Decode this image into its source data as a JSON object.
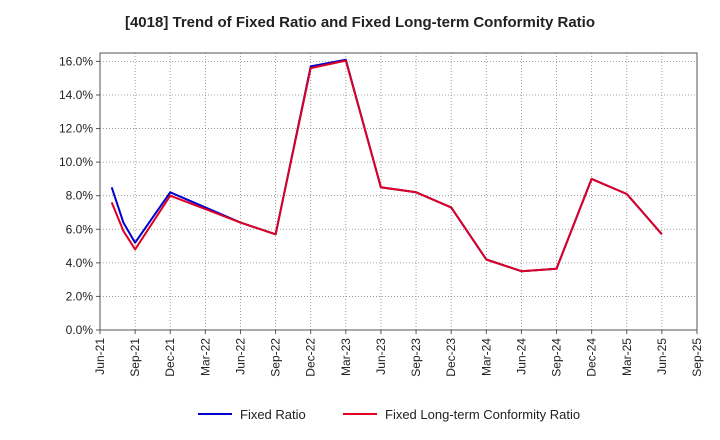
{
  "chart_data": {
    "type": "line",
    "title": "[4018]  Trend of Fixed Ratio and Fixed Long-term Conformity Ratio",
    "xlabel": "",
    "ylabel": "",
    "x_ticks": [
      "Jun-21",
      "Sep-21",
      "Dec-21",
      "Mar-22",
      "Jun-22",
      "Sep-22",
      "Dec-22",
      "Mar-23",
      "Jun-23",
      "Sep-23",
      "Dec-23",
      "Mar-24",
      "Jun-24",
      "Sep-24",
      "Dec-24",
      "Mar-25",
      "Jun-25",
      "Sep-25"
    ],
    "y_ticks": [
      "0.0%",
      "2.0%",
      "4.0%",
      "6.0%",
      "8.0%",
      "10.0%",
      "12.0%",
      "14.0%",
      "16.0%"
    ],
    "ylim": [
      0,
      16.5
    ],
    "grid": true,
    "legend_position": "bottom",
    "series": [
      {
        "name": "Fixed Ratio",
        "color": "#0000cc",
        "points": [
          {
            "x": "Jul-21",
            "y": 8.5
          },
          {
            "x": "Aug-21",
            "y": 6.4
          },
          {
            "x": "Sep-21",
            "y": 5.2
          },
          {
            "x": "Dec-21",
            "y": 8.2
          },
          {
            "x": "Mar-22",
            "y": 7.3
          },
          {
            "x": "Jun-22",
            "y": 6.4
          },
          {
            "x": "Sep-22",
            "y": 5.7
          },
          {
            "x": "Dec-22",
            "y": 15.7
          },
          {
            "x": "Mar-23",
            "y": 16.1
          },
          {
            "x": "Jun-23",
            "y": 8.5
          },
          {
            "x": "Sep-23",
            "y": 8.2
          },
          {
            "x": "Dec-23",
            "y": 7.3
          },
          {
            "x": "Mar-24",
            "y": 4.2
          },
          {
            "x": "Jun-24",
            "y": 3.5
          },
          {
            "x": "Sep-24",
            "y": 3.65
          },
          {
            "x": "Dec-24",
            "y": 9.0
          },
          {
            "x": "Mar-25",
            "y": 8.1
          },
          {
            "x": "Jun-25",
            "y": 5.7
          }
        ]
      },
      {
        "name": "Fixed Long-term Conformity Ratio",
        "color": "#dd0022",
        "points": [
          {
            "x": "Jul-21",
            "y": 7.6
          },
          {
            "x": "Aug-21",
            "y": 5.9
          },
          {
            "x": "Sep-21",
            "y": 4.8
          },
          {
            "x": "Dec-21",
            "y": 8.0
          },
          {
            "x": "Mar-22",
            "y": 7.2
          },
          {
            "x": "Jun-22",
            "y": 6.4
          },
          {
            "x": "Sep-22",
            "y": 5.7
          },
          {
            "x": "Dec-22",
            "y": 15.6
          },
          {
            "x": "Mar-23",
            "y": 16.05
          },
          {
            "x": "Jun-23",
            "y": 8.5
          },
          {
            "x": "Sep-23",
            "y": 8.2
          },
          {
            "x": "Dec-23",
            "y": 7.3
          },
          {
            "x": "Mar-24",
            "y": 4.2
          },
          {
            "x": "Jun-24",
            "y": 3.5
          },
          {
            "x": "Sep-24",
            "y": 3.65
          },
          {
            "x": "Dec-24",
            "y": 9.0
          },
          {
            "x": "Mar-25",
            "y": 8.1
          },
          {
            "x": "Jun-25",
            "y": 5.7
          }
        ]
      }
    ]
  }
}
